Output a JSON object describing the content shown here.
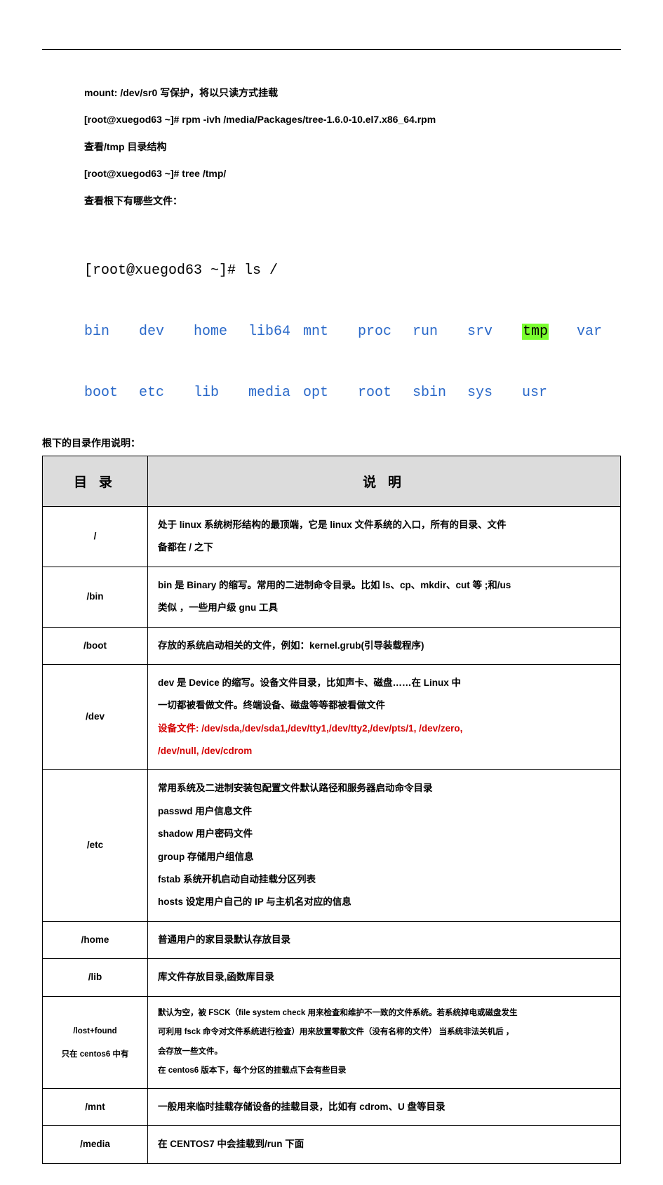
{
  "intro": {
    "l1": "mount: /dev/sr0  写保护，将以只读方式挂载",
    "l2": "[root@xuegod63 ~]# rpm  -ivh  /media/Packages/tree-1.6.0-10.el7.x86_64.rpm",
    "l3": "查看/tmp 目录结构",
    "l4": "[root@xuegod63 ~]# tree   /tmp/",
    "l5": "查看根下有哪些文件："
  },
  "terminal": {
    "prompt_user": "[root@xuegod63 ~]# ",
    "prompt_cmd": "ls /",
    "row1": [
      "bin",
      "dev",
      "home",
      "lib64",
      "mnt",
      "proc",
      "run",
      "srv",
      "tmp",
      "var"
    ],
    "row2": [
      "boot",
      "etc",
      "lib",
      "media",
      "opt",
      "root",
      "sbin",
      "sys",
      "usr"
    ],
    "highlight_idx": 8,
    "dir_color": "#2968c9",
    "hl_bg": "#7aff2f"
  },
  "section_title": "根下的目录作用说明：",
  "table": {
    "head_dir": "目 录",
    "head_desc": "说 明",
    "rows": [
      {
        "dir": "/",
        "lines": [
          {
            "t": "处于 linux 系统树形结构的最顶端，它是 linux 文件系统的入口，所有的目录、文件"
          },
          {
            "t": "备都在 / 之下"
          }
        ]
      },
      {
        "dir": "/bin",
        "lines": [
          {
            "t": "bin 是 Binary 的缩写。常用的二进制命令目录。比如  ls、cp、mkdir、cut 等 ;和/us"
          },
          {
            "t": "类似 ，一些用户级 gnu 工具"
          }
        ]
      },
      {
        "dir": "/boot",
        "lines": [
          {
            "t": "存放的系统启动相关的文件，例如：kernel.grub(引导装载程序)"
          }
        ]
      },
      {
        "dir": "/dev",
        "lines": [
          {
            "t": "dev 是 Device 的缩写。设备文件目录，比如声卡、磁盘……在 Linux 中"
          },
          {
            "t": "一切都被看做文件。终端设备、磁盘等等都被看做文件"
          },
          {
            "t": "设备文件: /dev/sda,/dev/sda1,/dev/tty1,/dev/tty2,/dev/pts/1, /dev/zero,",
            "red": true
          },
          {
            "t": "/dev/null, /dev/cdrom",
            "red": true
          }
        ]
      },
      {
        "dir": "/etc",
        "lines": [
          {
            "t": "常用系统及二进制安装包配置文件默认路径和服务器启动命令目录"
          },
          {
            "t": "passwd  用户信息文件"
          },
          {
            "t": "shadow   用户密码文件"
          },
          {
            "t": "group  存储用户组信息"
          },
          {
            "t": "fstab  系统开机启动自动挂载分区列表"
          },
          {
            "t": "hosts  设定用户自己的 IP 与主机名对应的信息"
          }
        ]
      },
      {
        "dir": "/home",
        "lines": [
          {
            "t": "普通用户的家目录默认存放目录"
          }
        ]
      },
      {
        "dir": "/lib",
        "lines": [
          {
            "t": "库文件存放目录,函数库目录"
          }
        ]
      },
      {
        "dir_html": "<span class=\"sub-note\">/lost+found</span><br><span class=\"sub-note\">只在 centos6 中有</span>",
        "lines": [
          {
            "t": "默认为空，被 FSCK（file  system  check 用来检查和维护不一致的文件系统。若系统掉电或磁盘发生",
            "small": true
          },
          {
            "t": "可利用 fsck 命令对文件系统进行检查）用来放置零散文件（没有名称的文件）  当系统非法关机后 ，",
            "small": true
          },
          {
            "t": "会存放一些文件。",
            "small": true
          },
          {
            "t": "在 centos6 版本下，每个分区的挂载点下会有些目录",
            "small": true
          }
        ]
      },
      {
        "dir": "/mnt",
        "lines": [
          {
            "t": "一般用来临时挂载存储设备的挂载目录，比如有 cdrom、U 盘等目录"
          }
        ]
      },
      {
        "dir": "/media",
        "lines": [
          {
            "t": "在 CENTOS7 中会挂载到/run 下面"
          }
        ]
      }
    ]
  }
}
